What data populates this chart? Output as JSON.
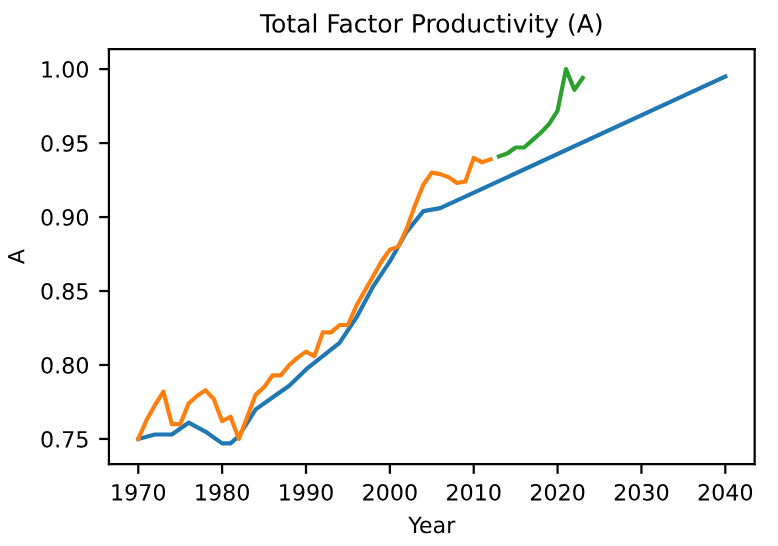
{
  "chart_data": {
    "type": "line",
    "title": "Total Factor Productivity (A)",
    "xlabel": "Year",
    "ylabel": "A",
    "xlim": [
      1966.5,
      2043.5
    ],
    "ylim": [
      0.733,
      1.0135
    ],
    "xticks": [
      1970,
      1980,
      1990,
      2000,
      2010,
      2020,
      2030,
      2040
    ],
    "yticks": [
      {
        "value": 0.75,
        "label": "0.75"
      },
      {
        "value": 0.8,
        "label": "0.80"
      },
      {
        "value": 0.85,
        "label": "0.85"
      },
      {
        "value": 0.9,
        "label": "0.90"
      },
      {
        "value": 0.95,
        "label": "0.95"
      },
      {
        "value": 1.0,
        "label": "1.00"
      }
    ],
    "grid": false,
    "series": [
      {
        "color": "#1f77b4",
        "x": [
          1970,
          1972,
          1974,
          1976,
          1978,
          1980,
          1981,
          1982,
          1984,
          1986,
          1988,
          1990,
          1992,
          1994,
          1996,
          1998,
          2000,
          2002,
          2004,
          2006,
          2040
        ],
        "values": [
          0.75,
          0.753,
          0.753,
          0.761,
          0.755,
          0.747,
          0.747,
          0.752,
          0.77,
          0.778,
          0.786,
          0.797,
          0.806,
          0.815,
          0.832,
          0.853,
          0.87,
          0.89,
          0.904,
          0.906,
          0.995
        ]
      },
      {
        "color": "#ff7f0e",
        "x": [
          1970,
          1971,
          1972,
          1973,
          1974,
          1975,
          1976,
          1977,
          1978,
          1979,
          1980,
          1981,
          1982,
          1983,
          1984,
          1985,
          1986,
          1987,
          1988,
          1989,
          1990,
          1991,
          1992,
          1993,
          1994,
          1995,
          1996,
          1997,
          1998,
          1999,
          2000,
          2001,
          2002,
          2003,
          2004,
          2005,
          2006,
          2007,
          2008,
          2009,
          2010,
          2011,
          2012
        ],
        "values": [
          0.75,
          0.763,
          0.773,
          0.782,
          0.76,
          0.76,
          0.774,
          0.779,
          0.783,
          0.777,
          0.762,
          0.765,
          0.75,
          0.765,
          0.78,
          0.785,
          0.793,
          0.793,
          0.8,
          0.805,
          0.809,
          0.806,
          0.822,
          0.822,
          0.827,
          0.827,
          0.84,
          0.85,
          0.86,
          0.87,
          0.878,
          0.88,
          0.892,
          0.908,
          0.922,
          0.93,
          0.929,
          0.927,
          0.923,
          0.924,
          0.94,
          0.937,
          0.939
        ]
      },
      {
        "color": "#2ca02c",
        "x": [
          2013,
          2014,
          2015,
          2016,
          2017,
          2018,
          2019,
          2020,
          2021,
          2022,
          2023
        ],
        "values": [
          0.941,
          0.943,
          0.947,
          0.947,
          0.952,
          0.957,
          0.963,
          0.972,
          1.0,
          0.986,
          0.994
        ]
      }
    ]
  }
}
